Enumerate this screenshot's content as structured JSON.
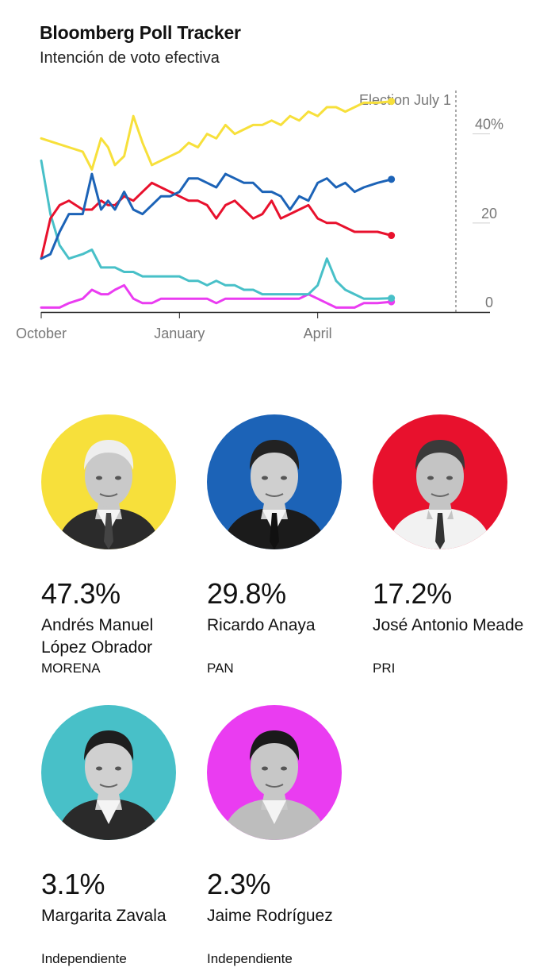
{
  "header": {
    "title": "Bloomberg Poll Tracker",
    "subtitle": "Intención de voto efectiva"
  },
  "chart_data": {
    "type": "line",
    "x_range": [
      0,
      9
    ],
    "x_unit": "months since October 1",
    "ylim": [
      0,
      46
    ],
    "x_ticks": [
      {
        "label": "October",
        "x": 0
      },
      {
        "label": "January",
        "x": 3
      },
      {
        "label": "April",
        "x": 6
      }
    ],
    "y_ticks": [
      {
        "label": "40%",
        "y": 40
      },
      {
        "label": "20",
        "y": 20
      },
      {
        "label": "0",
        "y": 0
      }
    ],
    "annotation": {
      "label": "Election July 1",
      "x": 9
    },
    "series": [
      {
        "name": "Andrés Manuel López Obrador",
        "color": "#f7e03b",
        "x": [
          0,
          0.3,
          0.6,
          0.9,
          1.1,
          1.3,
          1.45,
          1.6,
          1.8,
          2.0,
          2.2,
          2.4,
          2.6,
          2.8,
          3.0,
          3.2,
          3.4,
          3.6,
          3.8,
          4.0,
          4.2,
          4.4,
          4.6,
          4.8,
          5.0,
          5.2,
          5.4,
          5.6,
          5.8,
          6.0,
          6.2,
          6.4,
          6.6,
          6.8,
          7.0,
          7.3,
          7.6
        ],
        "values": [
          39,
          38,
          37,
          36,
          32,
          39,
          37,
          33,
          35,
          44,
          38,
          33,
          34,
          35,
          36,
          38,
          37,
          40,
          39,
          42,
          40,
          41,
          42,
          42,
          43,
          42,
          44,
          43,
          45,
          44,
          46,
          46,
          45,
          46,
          47,
          47,
          47.3
        ]
      },
      {
        "name": "Ricardo Anaya",
        "color": "#1c63b7",
        "x": [
          0,
          0.2,
          0.4,
          0.6,
          0.9,
          1.1,
          1.3,
          1.45,
          1.6,
          1.8,
          2.0,
          2.2,
          2.4,
          2.6,
          2.8,
          3.0,
          3.2,
          3.4,
          3.6,
          3.8,
          4.0,
          4.2,
          4.4,
          4.6,
          4.8,
          5.0,
          5.2,
          5.4,
          5.6,
          5.8,
          6.0,
          6.2,
          6.4,
          6.6,
          6.8,
          7.0,
          7.3,
          7.6
        ],
        "values": [
          12,
          13,
          18,
          22,
          22,
          31,
          23,
          25,
          23,
          27,
          23,
          22,
          24,
          26,
          26,
          27,
          30,
          30,
          29,
          28,
          31,
          30,
          29,
          29,
          27,
          27,
          26,
          23,
          26,
          25,
          29,
          30,
          28,
          29,
          27,
          28,
          29,
          29.8
        ]
      },
      {
        "name": "José Antonio Meade",
        "color": "#e8112d",
        "x": [
          0,
          0.2,
          0.4,
          0.6,
          0.9,
          1.1,
          1.3,
          1.45,
          1.6,
          1.8,
          2.0,
          2.2,
          2.4,
          2.6,
          2.8,
          3.0,
          3.2,
          3.4,
          3.6,
          3.8,
          4.0,
          4.2,
          4.4,
          4.6,
          4.8,
          5.0,
          5.2,
          5.4,
          5.6,
          5.8,
          6.0,
          6.2,
          6.4,
          6.6,
          6.8,
          7.0,
          7.3,
          7.6
        ],
        "values": [
          12,
          21,
          24,
          25,
          23,
          23,
          25,
          24,
          24,
          26,
          25,
          27,
          29,
          28,
          27,
          26,
          25,
          25,
          24,
          21,
          24,
          25,
          23,
          21,
          22,
          25,
          21,
          22,
          23,
          24,
          21,
          20,
          20,
          19,
          18,
          18,
          18,
          17.2
        ]
      },
      {
        "name": "Margarita Zavala",
        "color": "#48c0c8",
        "x": [
          0,
          0.2,
          0.4,
          0.6,
          0.9,
          1.1,
          1.3,
          1.45,
          1.6,
          1.8,
          2.0,
          2.2,
          2.4,
          2.6,
          2.8,
          3.0,
          3.2,
          3.4,
          3.6,
          3.8,
          4.0,
          4.2,
          4.4,
          4.6,
          4.8,
          5.0,
          5.2,
          5.4,
          5.6,
          5.8,
          6.0,
          6.2,
          6.4,
          6.6,
          6.8,
          7.0,
          7.3,
          7.6
        ],
        "values": [
          34,
          22,
          15,
          12,
          13,
          14,
          10,
          10,
          10,
          9,
          9,
          8,
          8,
          8,
          8,
          8,
          7,
          7,
          6,
          7,
          6,
          6,
          5,
          5,
          4,
          4,
          4,
          4,
          4,
          4,
          6,
          12,
          7,
          5,
          4,
          3,
          3,
          3.1
        ]
      },
      {
        "name": "Jaime Rodríguez",
        "color": "#ea3cf1",
        "x": [
          0,
          0.2,
          0.4,
          0.6,
          0.9,
          1.1,
          1.3,
          1.45,
          1.6,
          1.8,
          2.0,
          2.2,
          2.4,
          2.6,
          2.8,
          3.0,
          3.2,
          3.4,
          3.6,
          3.8,
          4.0,
          4.2,
          4.4,
          4.6,
          4.8,
          5.0,
          5.2,
          5.4,
          5.6,
          5.8,
          6.0,
          6.2,
          6.4,
          6.6,
          6.8,
          7.0,
          7.3,
          7.6
        ],
        "values": [
          1,
          1,
          1,
          2,
          3,
          5,
          4,
          4,
          5,
          6,
          3,
          2,
          2,
          3,
          3,
          3,
          3,
          3,
          3,
          2,
          3,
          3,
          3,
          3,
          3,
          3,
          3,
          3,
          3,
          4,
          3,
          2,
          1,
          1,
          1,
          2,
          2,
          2.3
        ]
      }
    ]
  },
  "candidates": [
    {
      "pct": "47.3%",
      "name": "Andrés Manuel López Obrador",
      "party": "MORENA",
      "color": "#f7e03b"
    },
    {
      "pct": "29.8%",
      "name": "Ricardo Anaya",
      "party": "PAN",
      "color": "#1c63b7"
    },
    {
      "pct": "17.2%",
      "name": "José Antonio Meade",
      "party": "PRI",
      "color": "#e8112d"
    },
    {
      "pct": "3.1%",
      "name": "Margarita Zavala",
      "party": "Independiente",
      "color": "#48c0c8"
    },
    {
      "pct": "2.3%",
      "name": "Jaime Rodríguez",
      "party": "Independiente",
      "color": "#ea3cf1"
    }
  ]
}
